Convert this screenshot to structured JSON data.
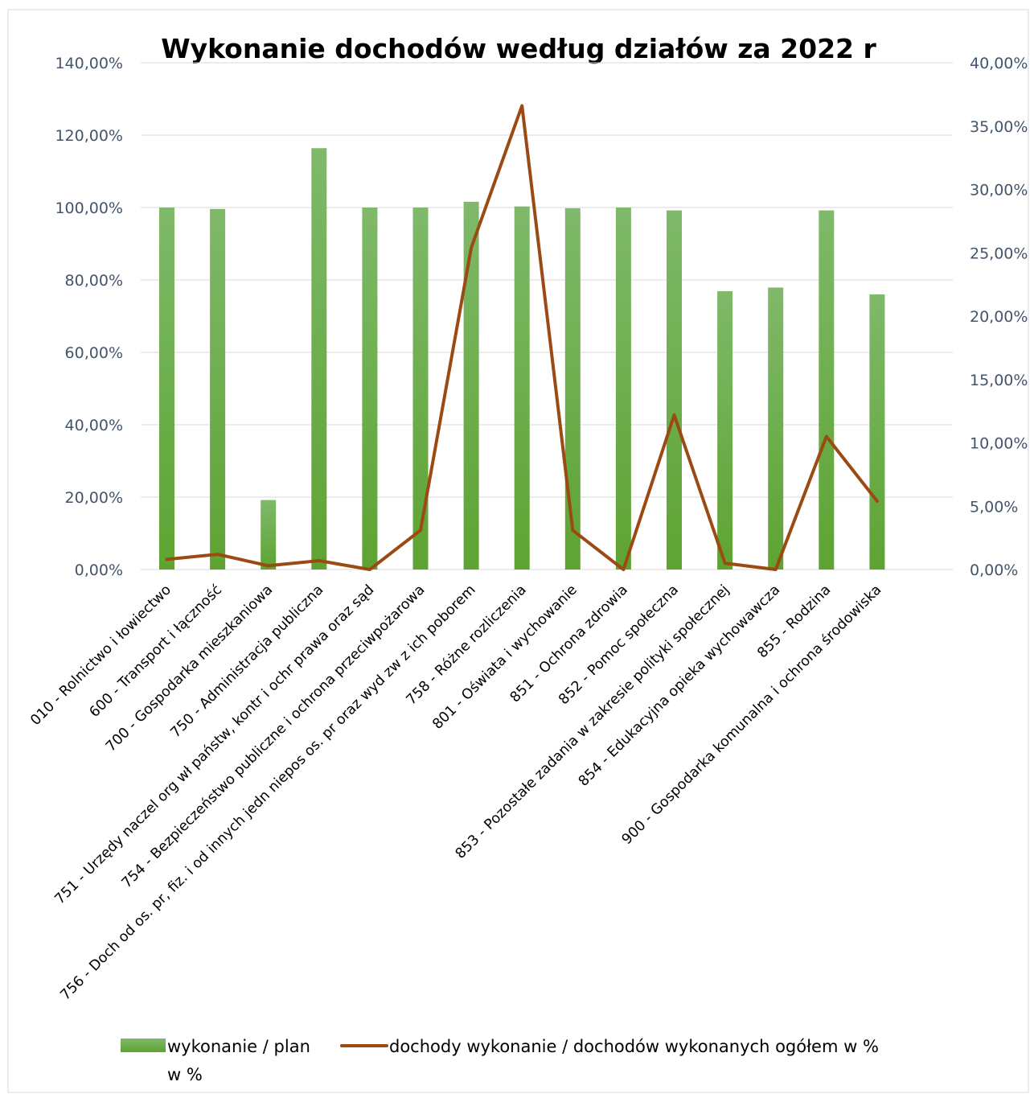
{
  "chart_data": {
    "type": "bar",
    "title": "Wykonanie dochodów według działów za 2022 r",
    "categories": [
      "010 - Rolnictwo i łowiectwo",
      "600 - Transport i łączność",
      "700 - Gospodarka mieszkaniowa",
      "750 - Administracja publiczna",
      "751 - Urzędy naczel org wł państw, kontr  i ochr  prawa oraz sąd",
      "754 - Bezpieczeństwo publiczne i ochrona przeciwpożarowa",
      "756 - Doch od os. pr, fiz. i od innych jedn niepos os. pr oraz wyd zw z ich poborem",
      "758 - Różne rozliczenia",
      "801 - Oświata i wychowanie",
      "851 - Ochrona zdrowia",
      "852 - Pomoc społeczna",
      "853 - Pozostałe zadania w zakresie polityki społecznej",
      "854 - Edukacyjna opieka wychowawcza",
      "855 -  Rodzina",
      "900 - Gospodarka komunalna i ochrona środowiska"
    ],
    "series": [
      {
        "name": "wykonanie / plan w %",
        "type": "bar",
        "axis": "left",
        "color": "#70ad47",
        "values": [
          100.0,
          99.6,
          19.2,
          116.4,
          100.0,
          100.0,
          101.6,
          100.3,
          99.8,
          100.0,
          99.2,
          76.9,
          77.9,
          99.2,
          76.0
        ]
      },
      {
        "name": "dochody wykonanie / dochodów wykonanych ogółem w %",
        "type": "line",
        "axis": "right",
        "color": "#9c4a13",
        "values": [
          0.8,
          1.2,
          0.3,
          0.7,
          0.0,
          3.1,
          25.4,
          36.6,
          3.1,
          0.0,
          12.2,
          0.5,
          0.0,
          10.5,
          5.4
        ]
      }
    ],
    "y_left": {
      "min": 0,
      "max": 140,
      "ticks": [
        "0,00%",
        "20,00%",
        "40,00%",
        "60,00%",
        "80,00%",
        "100,00%",
        "120,00%",
        "140,00%"
      ]
    },
    "y_right": {
      "min": 0,
      "max": 40,
      "ticks": [
        "0,00%",
        "5,00%",
        "10,00%",
        "15,00%",
        "20,00%",
        "25,00%",
        "30,00%",
        "35,00%",
        "40,00%"
      ]
    },
    "grid": true,
    "legend_position": "bottom"
  },
  "colors": {
    "bar_top": "#7fb96a",
    "bar_bottom": "#5ea332",
    "line": "#9c4a13",
    "grid": "#d9d9d9",
    "tick_text": "#44546a"
  }
}
